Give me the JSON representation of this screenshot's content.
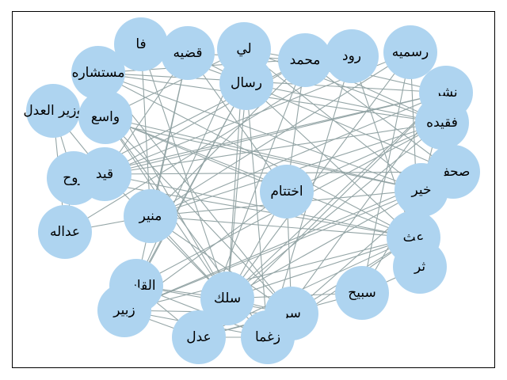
{
  "graph": {
    "colors": {
      "node": "#aed4f0",
      "edge": "#94a5a6",
      "label": "#000000"
    },
    "nodes": [
      {
        "id": "fa",
        "label": "فا"
      },
      {
        "id": "qadhiyah",
        "label": "قضيه"
      },
      {
        "id": "li",
        "label": "لي"
      },
      {
        "id": "muhammad",
        "label": "محمد"
      },
      {
        "id": "rud",
        "label": "رود"
      },
      {
        "id": "rasmiyah",
        "label": "رسميه"
      },
      {
        "id": "mustasharah",
        "label": "مستشاره"
      },
      {
        "id": "rasal",
        "label": "رسال"
      },
      {
        "id": "nashr",
        "label": "نشر"
      },
      {
        "id": "wazir",
        "label": "وزير العدل"
      },
      {
        "id": "wasie",
        "label": "واسع"
      },
      {
        "id": "faqidah",
        "label": "فقيده"
      },
      {
        "id": "sahaf",
        "label": "صحف"
      },
      {
        "id": "ruh",
        "label": "روح"
      },
      {
        "id": "qayd",
        "label": "قيد"
      },
      {
        "id": "ikhtitam",
        "label": "اختتام"
      },
      {
        "id": "khayr",
        "label": "خير"
      },
      {
        "id": "munir",
        "label": "منير"
      },
      {
        "id": "adalah",
        "label": "عداله"
      },
      {
        "id": "ath",
        "label": "عث"
      },
      {
        "id": "thar",
        "label": "ثر"
      },
      {
        "id": "qasim",
        "label": "القاسم"
      },
      {
        "id": "sabih",
        "label": "سبيح"
      },
      {
        "id": "silk",
        "label": "سلك"
      },
      {
        "id": "zubayr",
        "label": "زبير"
      },
      {
        "id": "sirr",
        "label": "سر"
      },
      {
        "id": "adl",
        "label": "عدل"
      },
      {
        "id": "zughma",
        "label": "زغما"
      }
    ],
    "edges": [
      [
        "fa",
        "silk"
      ],
      [
        "fa",
        "munir"
      ],
      [
        "fa",
        "rasal"
      ],
      [
        "qadhiyah",
        "ikhtitam"
      ],
      [
        "qadhiyah",
        "qayd"
      ],
      [
        "qadhiyah",
        "rasal"
      ],
      [
        "qadhiyah",
        "munir"
      ],
      [
        "qadhiyah",
        "qasim"
      ],
      [
        "qadhiyah",
        "muhammad"
      ],
      [
        "li",
        "wasie"
      ],
      [
        "li",
        "khayr"
      ],
      [
        "li",
        "silk"
      ],
      [
        "li",
        "qasim"
      ],
      [
        "li",
        "faqidah"
      ],
      [
        "li",
        "muhammad"
      ],
      [
        "muhammad",
        "adl"
      ],
      [
        "muhammad",
        "sahaf"
      ],
      [
        "muhammad",
        "ruh"
      ],
      [
        "muhammad",
        "ikhtitam"
      ],
      [
        "muhammad",
        "munir"
      ],
      [
        "muhammad",
        "nashr"
      ],
      [
        "muhammad",
        "faqidah"
      ],
      [
        "muhammad",
        "qayd"
      ],
      [
        "rud",
        "ath"
      ],
      [
        "rud",
        "adalah"
      ],
      [
        "rud",
        "zughma"
      ],
      [
        "rud",
        "mustasharah"
      ],
      [
        "rasmiyah",
        "thar"
      ],
      [
        "rasmiyah",
        "silk"
      ],
      [
        "rasmiyah",
        "qayd"
      ],
      [
        "rasmiyah",
        "sabih"
      ],
      [
        "rasmiyah",
        "munir"
      ],
      [
        "mustasharah",
        "faqidah"
      ],
      [
        "mustasharah",
        "sirr"
      ],
      [
        "mustasharah",
        "khayr"
      ],
      [
        "mustasharah",
        "nashr"
      ],
      [
        "mustasharah",
        "silk"
      ],
      [
        "mustasharah",
        "ath"
      ],
      [
        "rasal",
        "zughma"
      ],
      [
        "rasal",
        "qasim"
      ],
      [
        "rasal",
        "ath"
      ],
      [
        "rasal",
        "silk"
      ],
      [
        "rasal",
        "sahaf"
      ],
      [
        "rasal",
        "zubayr"
      ],
      [
        "rasal",
        "faqidah"
      ],
      [
        "nashr",
        "zughma"
      ],
      [
        "nashr",
        "silk"
      ],
      [
        "nashr",
        "ruh"
      ],
      [
        "nashr",
        "adl"
      ],
      [
        "nashr",
        "qayd"
      ],
      [
        "nashr",
        "munir"
      ],
      [
        "nashr",
        "khayr"
      ],
      [
        "wazir",
        "adalah"
      ],
      [
        "wazir",
        "ruh"
      ],
      [
        "wazir",
        "qayd"
      ],
      [
        "wazir",
        "khayr"
      ],
      [
        "wasie",
        "ath"
      ],
      [
        "wasie",
        "sirr"
      ],
      [
        "wasie",
        "silk"
      ],
      [
        "wasie",
        "zughma"
      ],
      [
        "wasie",
        "khayr"
      ],
      [
        "wasie",
        "ikhtitam"
      ],
      [
        "wasie",
        "mustasharah"
      ],
      [
        "faqidah",
        "munir"
      ],
      [
        "faqidah",
        "qasim"
      ],
      [
        "faqidah",
        "ikhtitam"
      ],
      [
        "faqidah",
        "qayd"
      ],
      [
        "faqidah",
        "silk"
      ],
      [
        "sahaf",
        "qayd"
      ],
      [
        "sahaf",
        "ath"
      ],
      [
        "sahaf",
        "zubayr"
      ],
      [
        "sahaf",
        "sirr"
      ],
      [
        "ruh",
        "ath"
      ],
      [
        "ruh",
        "adalah"
      ],
      [
        "ruh",
        "qayd"
      ],
      [
        "qayd",
        "ath"
      ],
      [
        "qayd",
        "silk"
      ],
      [
        "ikhtitam",
        "sirr"
      ],
      [
        "ikhtitam",
        "zubayr"
      ],
      [
        "ikhtitam",
        "silk"
      ],
      [
        "khayr",
        "munir"
      ],
      [
        "khayr",
        "silk"
      ],
      [
        "khayr",
        "zubayr"
      ],
      [
        "khayr",
        "sabih"
      ],
      [
        "munir",
        "ath"
      ],
      [
        "munir",
        "sirr"
      ],
      [
        "munir",
        "adalah"
      ],
      [
        "munir",
        "silk"
      ],
      [
        "ath",
        "sirr"
      ],
      [
        "ath",
        "silk"
      ],
      [
        "ath",
        "zughma"
      ],
      [
        "ath",
        "adl"
      ],
      [
        "ath",
        "zubayr"
      ],
      [
        "thar",
        "sabih"
      ],
      [
        "qasim",
        "adl"
      ],
      [
        "qasim",
        "silk"
      ],
      [
        "qasim",
        "sirr"
      ],
      [
        "qasim",
        "zughma"
      ],
      [
        "qasim",
        "zubayr"
      ],
      [
        "sabih",
        "silk"
      ],
      [
        "sabih",
        "adl"
      ],
      [
        "silk",
        "zughma"
      ],
      [
        "silk",
        "sirr"
      ],
      [
        "silk",
        "adl"
      ],
      [
        "zubayr",
        "zughma"
      ],
      [
        "zubayr",
        "adl"
      ],
      [
        "zubayr",
        "sirr"
      ],
      [
        "sirr",
        "adl"
      ],
      [
        "adl",
        "zughma"
      ]
    ]
  }
}
